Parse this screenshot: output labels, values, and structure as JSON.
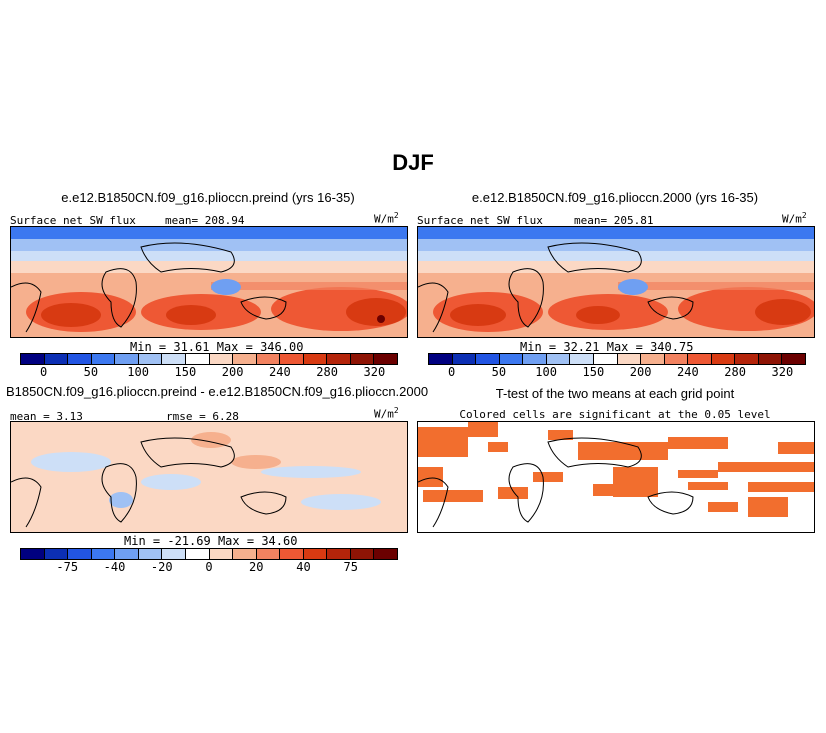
{
  "title": "DJF",
  "units_base": "W/m",
  "units_exp": "2",
  "panels": {
    "preind": {
      "title": "e.e12.B1850CN.f09_g16.plioccn.preind (yrs 16-35)",
      "label": "Surface net SW flux",
      "mean_label": "mean=",
      "mean": "208.94",
      "min_label": "Min =",
      "min": "31.61",
      "max_label": "Max =",
      "max": "346.00"
    },
    "y2000": {
      "title": "e.e12.B1850CN.f09_g16.plioccn.2000 (yrs 16-35)",
      "label": "Surface net SW flux",
      "mean_label": "mean=",
      "mean": "205.81",
      "min_label": "Min =",
      "min": "32.21",
      "max_label": "Max =",
      "max": "340.75"
    },
    "diff": {
      "title": "B1850CN.f09_g16.plioccn.preind - e.e12.B1850CN.f09_g16.plioccn.2000",
      "mean_label": "mean =",
      "mean": "3.13",
      "rmse_label": "rmse =",
      "rmse": "6.28",
      "min_label": "Min =",
      "min": "-21.69",
      "max_label": "Max =",
      "max": "34.60"
    },
    "ttest": {
      "title": "T-test of the two means at each grid point",
      "subtitle": "Colored cells are significant at the 0.05 level",
      "cell_color": "#f26e2e"
    }
  },
  "colorbars": {
    "absolute": {
      "colors": [
        "#000080",
        "#0c2fb4",
        "#2255e3",
        "#3c78f0",
        "#6f9ff2",
        "#a0c1f4",
        "#cddff7",
        "#ffffff",
        "#fbd8c4",
        "#f6b08e",
        "#f28260",
        "#ee5834",
        "#d83a12",
        "#b4240a",
        "#8e1405",
        "#6b0000"
      ],
      "ticks": [
        "0",
        "50",
        "100",
        "150",
        "200",
        "240",
        "280",
        "320"
      ]
    },
    "difference": {
      "colors": [
        "#000080",
        "#0c2fb4",
        "#2255e3",
        "#3c78f0",
        "#6f9ff2",
        "#a0c1f4",
        "#cddff7",
        "#ffffff",
        "#fbd8c4",
        "#f6b08e",
        "#f28260",
        "#ee5834",
        "#d83a12",
        "#b4240a",
        "#8e1405",
        "#6b0000"
      ],
      "ticks": [
        "-75",
        "-40",
        "-20",
        "0",
        "20",
        "40",
        "75"
      ]
    }
  }
}
